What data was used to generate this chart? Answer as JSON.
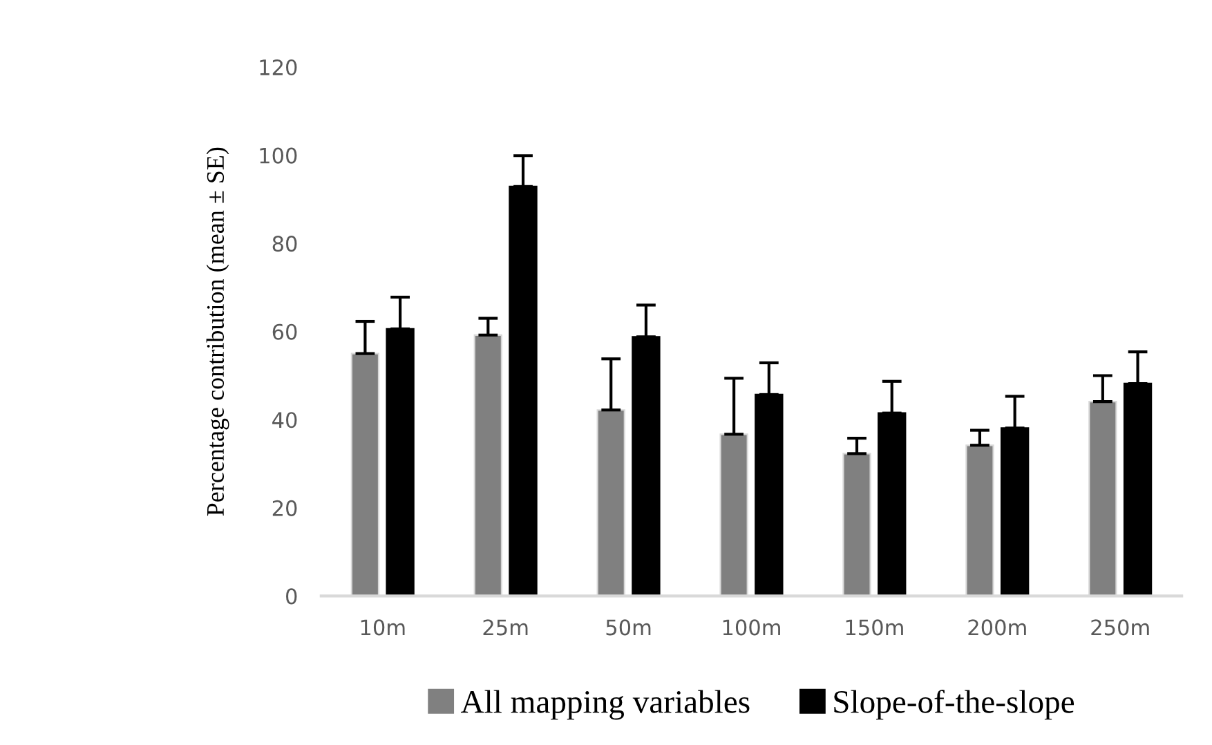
{
  "chart_data": {
    "type": "bar",
    "ylabel": "Percentage contribution (mean ± SE)",
    "categories": [
      "10m",
      "25m",
      "50m",
      "100m",
      "150m",
      "200m",
      "250m"
    ],
    "series": [
      {
        "name": "All mapping variables",
        "color": "#808080",
        "values": [
          55.0,
          59.2,
          42.2,
          36.7,
          32.3,
          34.2,
          44.1
        ],
        "errors": [
          [
            55.0,
            62.3
          ],
          [
            59.2,
            63.0
          ],
          [
            42.2,
            53.8
          ],
          [
            36.7,
            49.4
          ],
          [
            32.3,
            35.8
          ],
          [
            34.2,
            37.6
          ],
          [
            44.1,
            50.0
          ]
        ]
      },
      {
        "name": "Slope-of-the-slope",
        "color": "#000000",
        "values": [
          60.6,
          92.9,
          58.8,
          45.7,
          41.5,
          38.1,
          48.2
        ],
        "errors": [
          [
            60.6,
            67.8
          ],
          [
            92.9,
            99.9
          ],
          [
            58.8,
            66.0
          ],
          [
            45.7,
            52.9
          ],
          [
            41.5,
            48.7
          ],
          [
            38.1,
            45.3
          ],
          [
            48.2,
            55.4
          ]
        ]
      }
    ],
    "ylim": [
      0,
      120
    ],
    "yticks": [
      0,
      20,
      40,
      60,
      80,
      100,
      120
    ],
    "grid": false,
    "legend": "bottom"
  }
}
